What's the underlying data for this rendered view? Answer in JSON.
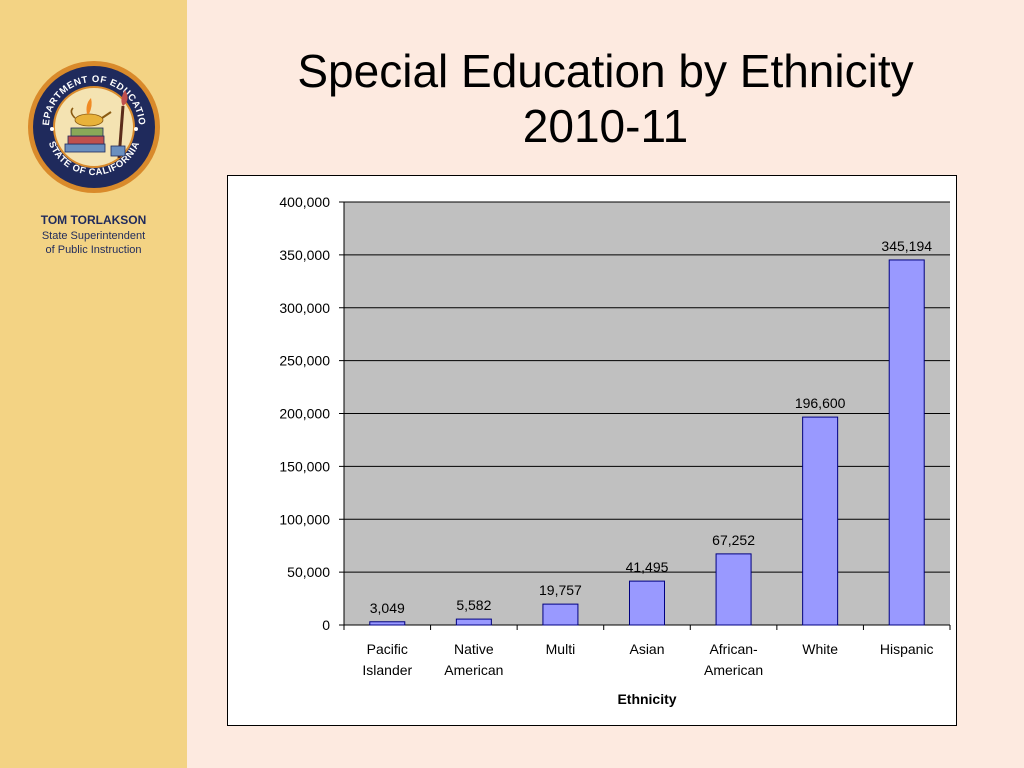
{
  "sidebar": {
    "seal": {
      "top_text": "DEPARTMENT OF EDUCATION",
      "bottom_text": "STATE OF CALIFORNIA"
    },
    "presenter_name": "TOM TORLAKSON",
    "presenter_title_line1": "State Superintendent",
    "presenter_title_line2": "of Public Instruction"
  },
  "slide": {
    "title_line1": "Special Education by Ethnicity",
    "title_line2": "2010-11"
  },
  "colors": {
    "sidebar_background": "#f3d384",
    "slide_background": "#fdeae0",
    "plot_area": "#c0c0c0",
    "bar_fill": "#9999ff",
    "bar_stroke": "#000080",
    "seal_navy": "#1f2a5c"
  },
  "chart_data": {
    "type": "bar",
    "title": "",
    "xlabel": "Ethnicity",
    "ylabel": "",
    "categories": [
      [
        "Pacific",
        "Islander"
      ],
      [
        "Native",
        "American"
      ],
      [
        "Multi"
      ],
      [
        "Asian"
      ],
      [
        "African-",
        "American"
      ],
      [
        "White"
      ],
      [
        "Hispanic"
      ]
    ],
    "values": [
      3049,
      5582,
      19757,
      41495,
      67252,
      196600,
      345194
    ],
    "data_labels": [
      "3,049",
      "5,582",
      "19,757",
      "41,495",
      "67,252",
      "196,600",
      "345,194"
    ],
    "ylim": [
      0,
      400000
    ],
    "yticks": [
      0,
      50000,
      100000,
      150000,
      200000,
      250000,
      300000,
      350000,
      400000
    ],
    "ytick_labels": [
      "0",
      "50,000",
      "100,000",
      "150,000",
      "200,000",
      "250,000",
      "300,000",
      "350,000",
      "400,000"
    ],
    "grid": true,
    "legend": false
  }
}
